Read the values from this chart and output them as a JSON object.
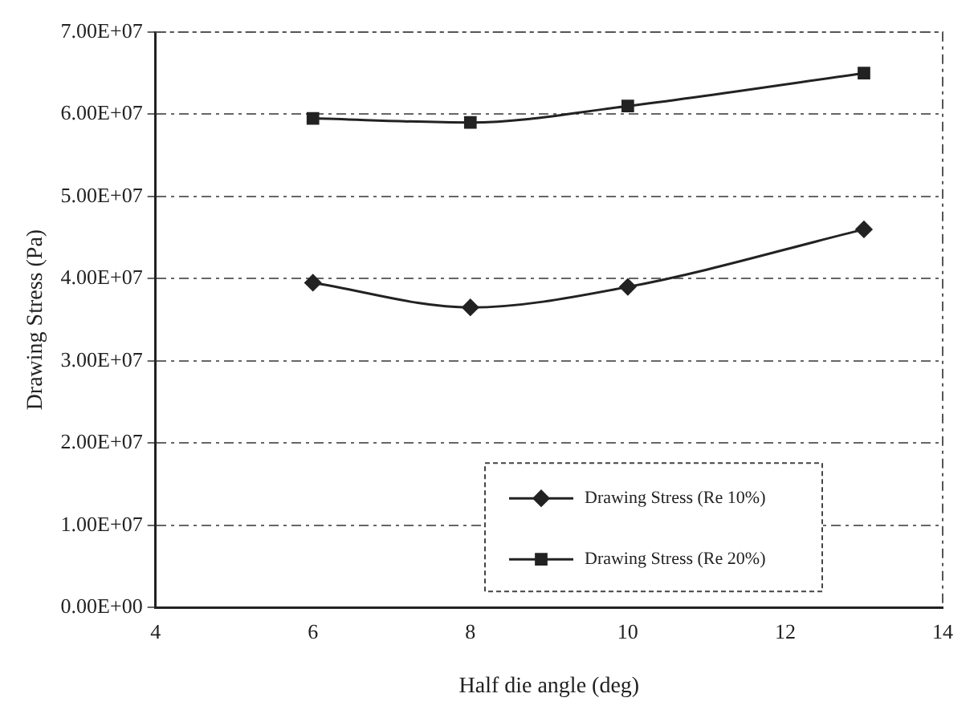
{
  "chart_data": {
    "type": "line",
    "xlabel": "Half die angle (deg)",
    "ylabel": "Drawing Stress (Pa)",
    "x": [
      6,
      8,
      10,
      13
    ],
    "series": [
      {
        "name": "Drawing Stress (Re 10%)",
        "color": "#222222",
        "marker": "diamond",
        "values": [
          39500000,
          36500000,
          39000000,
          46000000
        ]
      },
      {
        "name": "Drawing Stress (Re 20%)",
        "color": "#222222",
        "marker": "square",
        "values": [
          59500000,
          59000000,
          61000000,
          65000000
        ]
      }
    ],
    "xlim": [
      4,
      14
    ],
    "xticks": [
      4,
      6,
      8,
      10,
      12,
      14
    ],
    "ylim": [
      0,
      70000000
    ],
    "yticks": [
      {
        "value": 0,
        "label": "0.00E+00"
      },
      {
        "value": 10000000,
        "label": "1.00E+07"
      },
      {
        "value": 20000000,
        "label": "2.00E+07"
      },
      {
        "value": 30000000,
        "label": "3.00E+07"
      },
      {
        "value": 40000000,
        "label": "4.00E+07"
      },
      {
        "value": 50000000,
        "label": "5.00E+07"
      },
      {
        "value": 60000000,
        "label": "6.00E+07"
      },
      {
        "value": 70000000,
        "label": "7.00E+07"
      }
    ],
    "grid": "y",
    "legend": "bottom right",
    "line_style": "solid"
  }
}
